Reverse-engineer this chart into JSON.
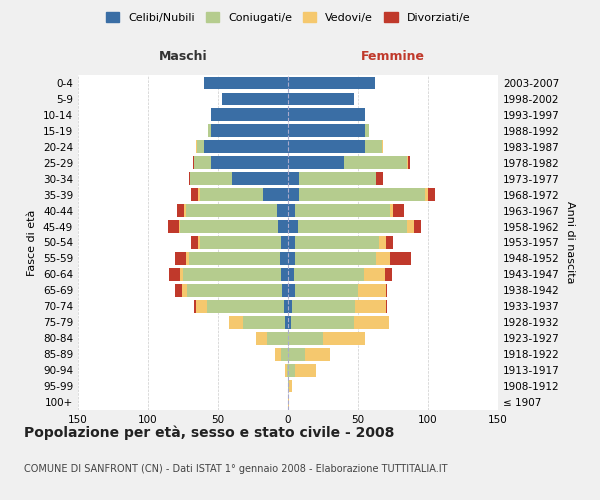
{
  "age_groups": [
    "100+",
    "95-99",
    "90-94",
    "85-89",
    "80-84",
    "75-79",
    "70-74",
    "65-69",
    "60-64",
    "55-59",
    "50-54",
    "45-49",
    "40-44",
    "35-39",
    "30-34",
    "25-29",
    "20-24",
    "15-19",
    "10-14",
    "5-9",
    "0-4"
  ],
  "birth_years": [
    "≤ 1907",
    "1908-1912",
    "1913-1917",
    "1918-1922",
    "1923-1927",
    "1928-1932",
    "1933-1937",
    "1938-1942",
    "1943-1947",
    "1948-1952",
    "1953-1957",
    "1958-1962",
    "1963-1967",
    "1968-1972",
    "1973-1977",
    "1978-1982",
    "1983-1987",
    "1988-1992",
    "1993-1997",
    "1998-2002",
    "2003-2007"
  ],
  "male": {
    "celibi": [
      0,
      0,
      0,
      0,
      0,
      2,
      3,
      4,
      5,
      6,
      5,
      7,
      8,
      18,
      40,
      55,
      60,
      55,
      55,
      47,
      60
    ],
    "coniugati": [
      0,
      0,
      1,
      5,
      15,
      30,
      55,
      68,
      70,
      65,
      58,
      70,
      65,
      45,
      30,
      12,
      5,
      2,
      0,
      0,
      0
    ],
    "vedovi": [
      0,
      0,
      1,
      4,
      8,
      10,
      8,
      4,
      2,
      2,
      1,
      1,
      1,
      1,
      0,
      0,
      1,
      0,
      0,
      0,
      0
    ],
    "divorziati": [
      0,
      0,
      0,
      0,
      0,
      0,
      1,
      5,
      8,
      8,
      5,
      8,
      5,
      5,
      1,
      1,
      0,
      0,
      0,
      0,
      0
    ]
  },
  "female": {
    "nubili": [
      0,
      0,
      0,
      0,
      0,
      2,
      3,
      5,
      4,
      5,
      5,
      7,
      5,
      8,
      8,
      40,
      55,
      55,
      55,
      47,
      62
    ],
    "coniugate": [
      0,
      1,
      5,
      12,
      25,
      45,
      45,
      45,
      50,
      58,
      60,
      78,
      68,
      90,
      55,
      45,
      12,
      3,
      0,
      0,
      0
    ],
    "vedove": [
      1,
      2,
      15,
      18,
      30,
      25,
      22,
      20,
      15,
      10,
      5,
      5,
      2,
      2,
      0,
      1,
      1,
      0,
      0,
      0,
      0
    ],
    "divorziate": [
      0,
      0,
      0,
      0,
      0,
      0,
      1,
      1,
      5,
      15,
      5,
      5,
      8,
      5,
      5,
      1,
      0,
      0,
      0,
      0,
      0
    ]
  },
  "colors": {
    "celibi": "#3a6ea5",
    "coniugati": "#b5cc8e",
    "vedovi": "#f5c86e",
    "divorziati": "#c0392b"
  },
  "xlim": 150,
  "title": "Popolazione per età, sesso e stato civile - 2008",
  "subtitle": "COMUNE DI SANFRONT (CN) - Dati ISTAT 1° gennaio 2008 - Elaborazione TUTTITALIA.IT",
  "ylabel_left": "Fasce di età",
  "ylabel_right": "Anni di nascita",
  "xlabel_left": "Maschi",
  "xlabel_right": "Femmine",
  "bg_color": "#f0f0f0",
  "plot_bg": "#ffffff"
}
